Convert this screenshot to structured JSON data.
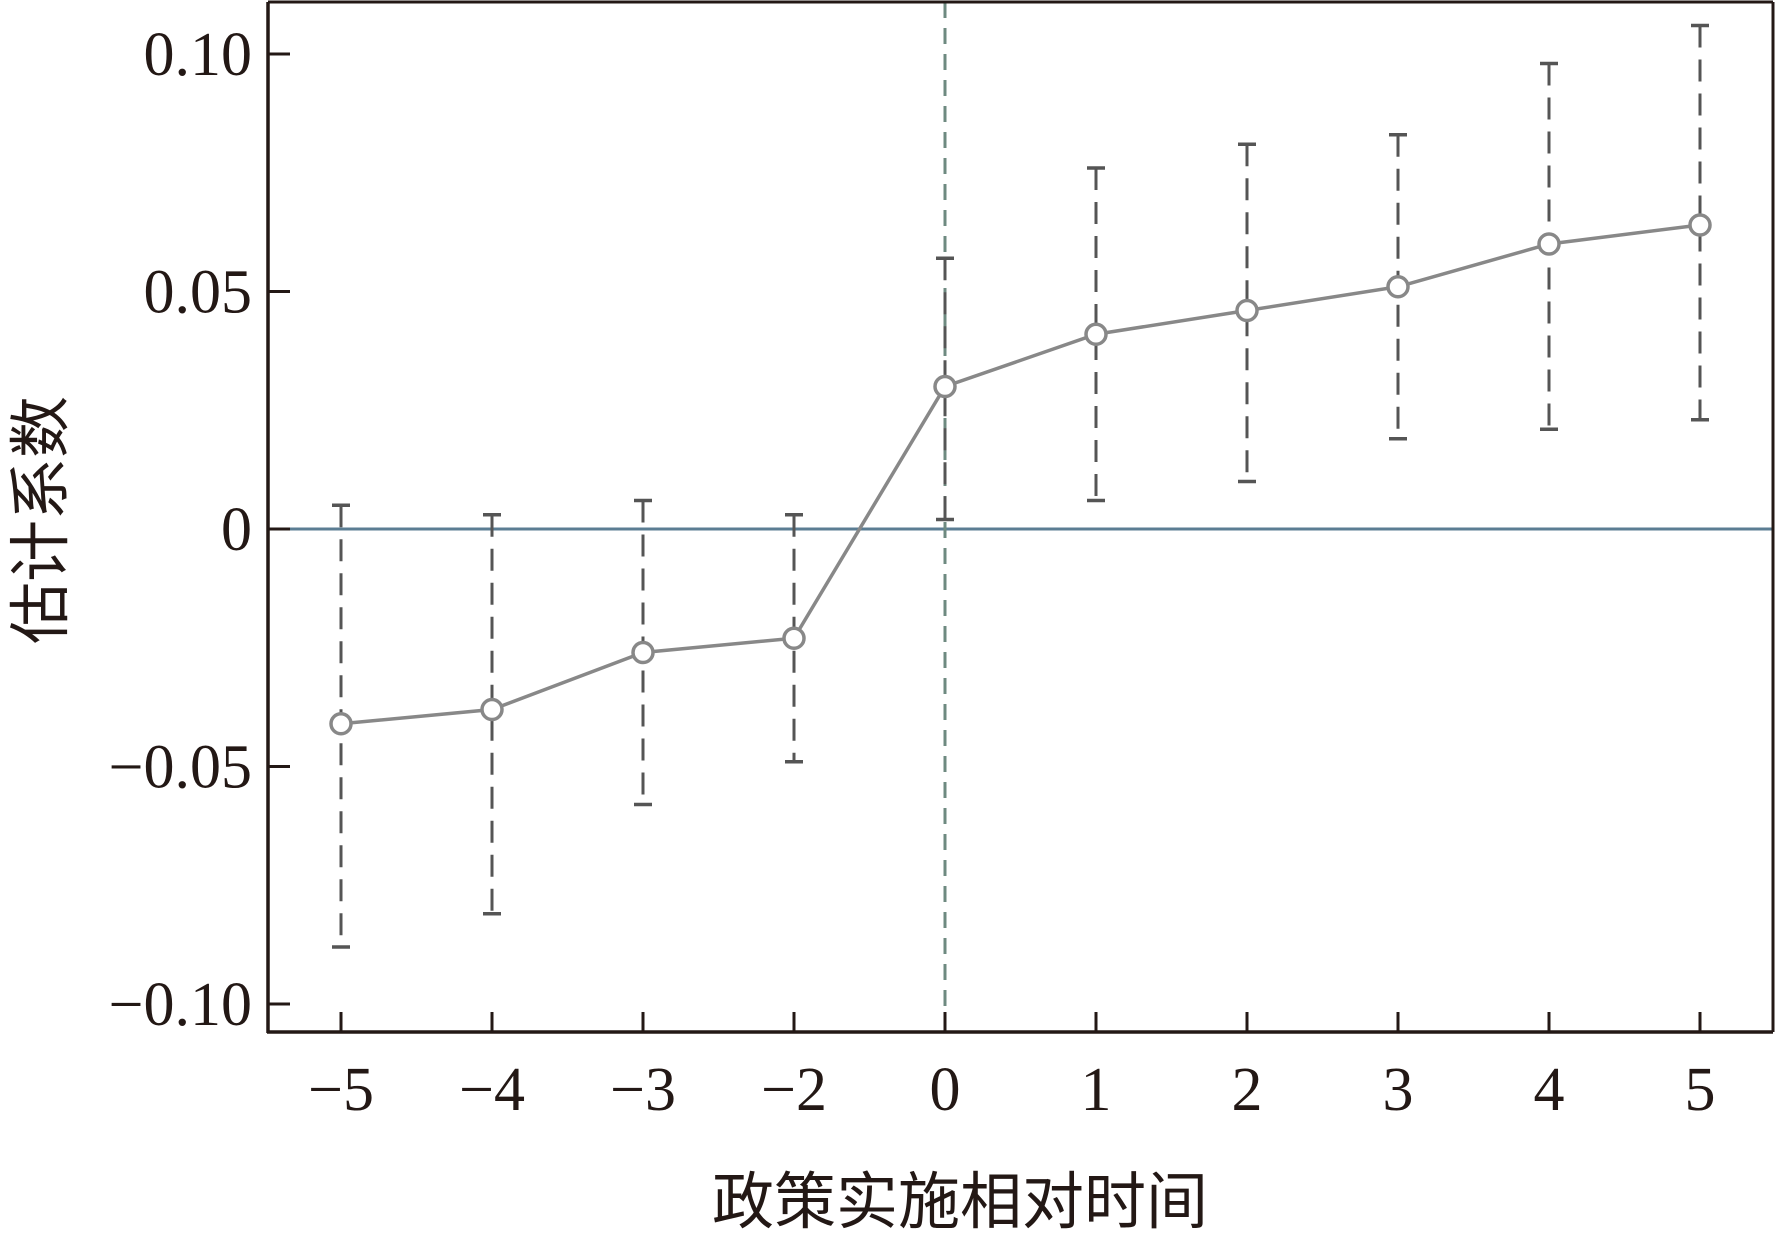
{
  "chart_data": {
    "type": "line",
    "title": "",
    "xlabel": "政策实施相对时间",
    "ylabel": "估计系数",
    "categories": [
      "−5",
      "−4",
      "−3",
      "−2",
      "0",
      "1",
      "2",
      "3",
      "4",
      "5"
    ],
    "series": [
      {
        "values": [
          -0.041,
          -0.038,
          -0.026,
          -0.023,
          0.03,
          0.041,
          0.046,
          0.051,
          0.06,
          0.064
        ],
        "ci_lower": [
          -0.088,
          -0.081,
          -0.058,
          -0.049,
          0.002,
          0.006,
          0.01,
          0.019,
          0.021,
          0.023
        ],
        "ci_upper": [
          0.005,
          0.003,
          0.006,
          0.003,
          0.057,
          0.076,
          0.081,
          0.083,
          0.098,
          0.106
        ]
      }
    ],
    "yticks": [
      -0.1,
      -0.05,
      0,
      0.05,
      0.1
    ],
    "ytick_labels": [
      "−0.10",
      "−0.05",
      "0",
      "0.05",
      "0.10"
    ],
    "ylim": [
      -0.105,
      0.111
    ],
    "reference_hline": 0,
    "reference_vline_category": "0",
    "grid": false,
    "legend": "none",
    "colors": {
      "series_line": "#888888",
      "error_bar": "#555555",
      "zero_line": "#5b7d93",
      "vline": "#6e8a80",
      "axis": "#231815"
    }
  }
}
